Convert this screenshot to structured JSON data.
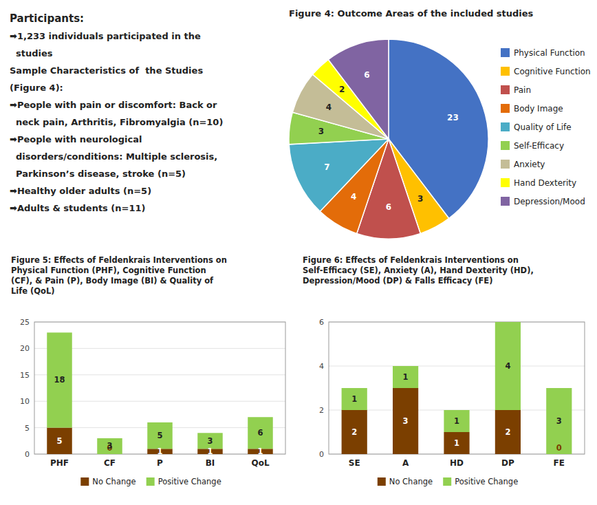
{
  "chart_data": [
    {
      "type": "pie",
      "title": "Figure 4: Outcome Areas of the included studies",
      "annotations": [
        "Participants:",
        "➡1,233 individuals participated in the",
        "  studies",
        "Sample Characteristics of  the Studies",
        "(Figure 4):",
        "➡People with pain or discomfort: Back or",
        "  neck pain, Arthritis, Fibromyalgia (n=10)",
        "➡People with neurological",
        "  disorders/conditions: Multiple sclerosis,",
        "  Parkinson’s disease, stroke (n=5)",
        "➡Healthy older adults (n=5)",
        "➡Adults & students (n=11)"
      ],
      "categories": [
        "Physical Function",
        "Cognitive Function",
        "Pain",
        "Body Image",
        "Quality of Life",
        "Self-Efficacy",
        "Anxiety",
        "Hand Dexterity",
        "Depression/Mood"
      ],
      "values": [
        23,
        3,
        6,
        4,
        7,
        3,
        4,
        2,
        6
      ],
      "colors": [
        "#4472C4",
        "#FFC000",
        "#C0504D",
        "#E36C09",
        "#4BACC6",
        "#92D050",
        "#C4BD97",
        "#FFFF00",
        "#8064A2"
      ],
      "data_labels": true,
      "legend": "right"
    },
    {
      "type": "bar",
      "title": "Figure 5: Effects of Feldenkrais Interventions on\nPhysical Function (PHF), Cognitive Function\n(CF), & Pain (P),  Body Image (BI) & Quality of\nLife (QoL)",
      "categories": [
        "PHF",
        "CF",
        "P",
        "BI",
        "QoL"
      ],
      "series": [
        {
          "name": "No Change",
          "color": "#7B3F00",
          "values": [
            5,
            0,
            1,
            1,
            1
          ]
        },
        {
          "name": "Positive Change",
          "color": "#92D050",
          "values": [
            18,
            3,
            5,
            3,
            6
          ]
        }
      ],
      "stacked": true,
      "data_labels": true,
      "grid": true,
      "legend": "bottom",
      "ylim": [
        0,
        25
      ],
      "yticks": [
        0,
        5,
        10,
        15,
        20,
        25
      ]
    },
    {
      "type": "bar",
      "title": "Figure 6: Effects of Feldenkrais Interventions on\nSelf-Efficacy (SE), Anxiety (A), Hand Dexterity (HD),\nDepression/Mood (DP) & Falls Efficacy (FE)",
      "categories": [
        "SE",
        "A",
        "HD",
        "DP",
        "FE"
      ],
      "series": [
        {
          "name": "No Change",
          "color": "#7B3F00",
          "values": [
            2,
            3,
            1,
            2,
            0
          ]
        },
        {
          "name": "Positive Change",
          "color": "#92D050",
          "values": [
            1,
            1,
            1,
            4,
            3
          ]
        }
      ],
      "stacked": true,
      "data_labels": true,
      "grid": true,
      "legend": "bottom",
      "ylim": [
        0,
        6
      ],
      "yticks": [
        0,
        2,
        4,
        6
      ]
    }
  ]
}
